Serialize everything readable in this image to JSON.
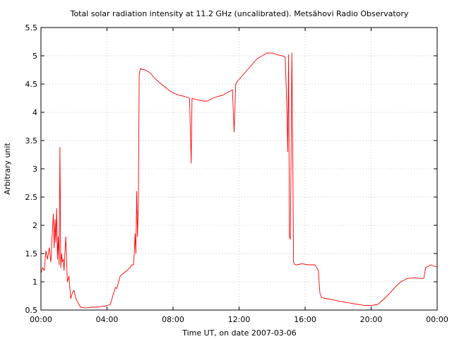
{
  "chart_data": {
    "type": "line",
    "title": "Total solar radiation intensity at 11.2 GHz (uncalibrated). Metsähovi Radio Observatory",
    "xlabel": "Time UT, on date 2007-03-06",
    "ylabel": "Arbitrary unit",
    "xlim": [
      0,
      24
    ],
    "ylim": [
      0.5,
      5.5
    ],
    "x_ticks": [
      0,
      4,
      8,
      12,
      16,
      20,
      24
    ],
    "x_tick_labels": [
      "00:00",
      "04:00",
      "08:00",
      "12:00",
      "16:00",
      "20:00",
      "00:00"
    ],
    "y_ticks": [
      0.5,
      1,
      1.5,
      2,
      2.5,
      3,
      3.5,
      4,
      4.5,
      5,
      5.5
    ],
    "y_tick_labels": [
      "0.5",
      "1",
      "1.5",
      "2",
      "2.5",
      "3",
      "3.5",
      "4",
      "4.5",
      "5",
      "5.5"
    ],
    "grid": true,
    "series": [
      {
        "color": "#ff0000",
        "x": [
          0.0,
          0.1,
          0.2,
          0.3,
          0.4,
          0.5,
          0.6,
          0.7,
          0.75,
          0.8,
          0.85,
          0.9,
          0.95,
          1.0,
          1.05,
          1.1,
          1.15,
          1.2,
          1.25,
          1.3,
          1.35,
          1.4,
          1.5,
          1.6,
          1.7,
          1.8,
          1.9,
          2.0,
          2.1,
          2.2,
          2.3,
          2.4,
          2.5,
          2.6,
          2.7,
          2.8,
          3.0,
          3.3,
          3.6,
          3.9,
          4.2,
          4.4,
          4.5,
          4.6,
          4.7,
          4.8,
          5.0,
          5.2,
          5.4,
          5.5,
          5.6,
          5.65,
          5.7,
          5.75,
          5.8,
          5.85,
          5.9,
          5.95,
          6.0,
          6.05,
          6.1,
          6.3,
          6.6,
          6.9,
          7.2,
          7.5,
          7.8,
          8.1,
          8.4,
          8.7,
          9.0,
          9.1,
          9.15,
          9.2,
          9.5,
          9.8,
          10.1,
          10.4,
          10.7,
          11.0,
          11.3,
          11.5,
          11.6,
          11.7,
          11.8,
          11.9,
          12.2,
          12.5,
          12.8,
          13.1,
          13.4,
          13.7,
          14.0,
          14.3,
          14.6,
          14.8,
          14.9,
          14.95,
          15.0,
          15.05,
          15.1,
          15.15,
          15.2,
          15.25,
          15.3,
          15.35,
          15.4,
          15.45,
          15.5,
          15.8,
          16.2,
          16.6,
          16.8,
          16.9,
          17.0,
          17.3,
          17.7,
          18.0,
          18.4,
          18.8,
          19.2,
          19.6,
          20.0,
          20.4,
          20.8,
          21.2,
          21.5,
          21.8,
          22.2,
          22.6,
          23.0,
          23.15,
          23.2,
          23.3,
          23.6,
          24.0
        ],
        "y": [
          1.15,
          1.25,
          1.2,
          1.55,
          1.4,
          1.6,
          1.35,
          1.95,
          2.2,
          1.6,
          2.1,
          1.7,
          2.3,
          1.4,
          1.8,
          1.3,
          3.38,
          1.25,
          1.5,
          1.35,
          1.4,
          1.2,
          1.8,
          1.0,
          1.1,
          0.7,
          0.8,
          0.85,
          0.72,
          0.65,
          0.6,
          0.55,
          0.55,
          0.54,
          0.54,
          0.54,
          0.55,
          0.55,
          0.56,
          0.57,
          0.6,
          0.8,
          0.9,
          0.88,
          1.0,
          1.1,
          1.15,
          1.2,
          1.25,
          1.3,
          1.3,
          1.5,
          1.85,
          1.5,
          2.6,
          1.8,
          2.4,
          4.65,
          4.75,
          4.78,
          4.76,
          4.75,
          4.7,
          4.6,
          4.52,
          4.45,
          4.38,
          4.33,
          4.3,
          4.28,
          4.25,
          3.1,
          4.25,
          4.24,
          4.22,
          4.2,
          4.2,
          4.25,
          4.28,
          4.3,
          4.35,
          4.38,
          4.4,
          3.65,
          4.5,
          4.55,
          4.65,
          4.75,
          4.85,
          4.95,
          5.0,
          5.05,
          5.05,
          5.02,
          5.0,
          4.98,
          4.0,
          3.3,
          5.02,
          1.8,
          1.75,
          3.1,
          5.05,
          3.4,
          1.35,
          1.32,
          1.3,
          1.3,
          1.3,
          1.32,
          1.3,
          1.3,
          1.2,
          0.8,
          0.72,
          0.7,
          0.68,
          0.66,
          0.64,
          0.62,
          0.6,
          0.58,
          0.58,
          0.6,
          0.7,
          0.82,
          0.92,
          1.0,
          1.06,
          1.07,
          1.06,
          1.06,
          1.07,
          1.25,
          1.3,
          1.26
        ]
      }
    ]
  }
}
